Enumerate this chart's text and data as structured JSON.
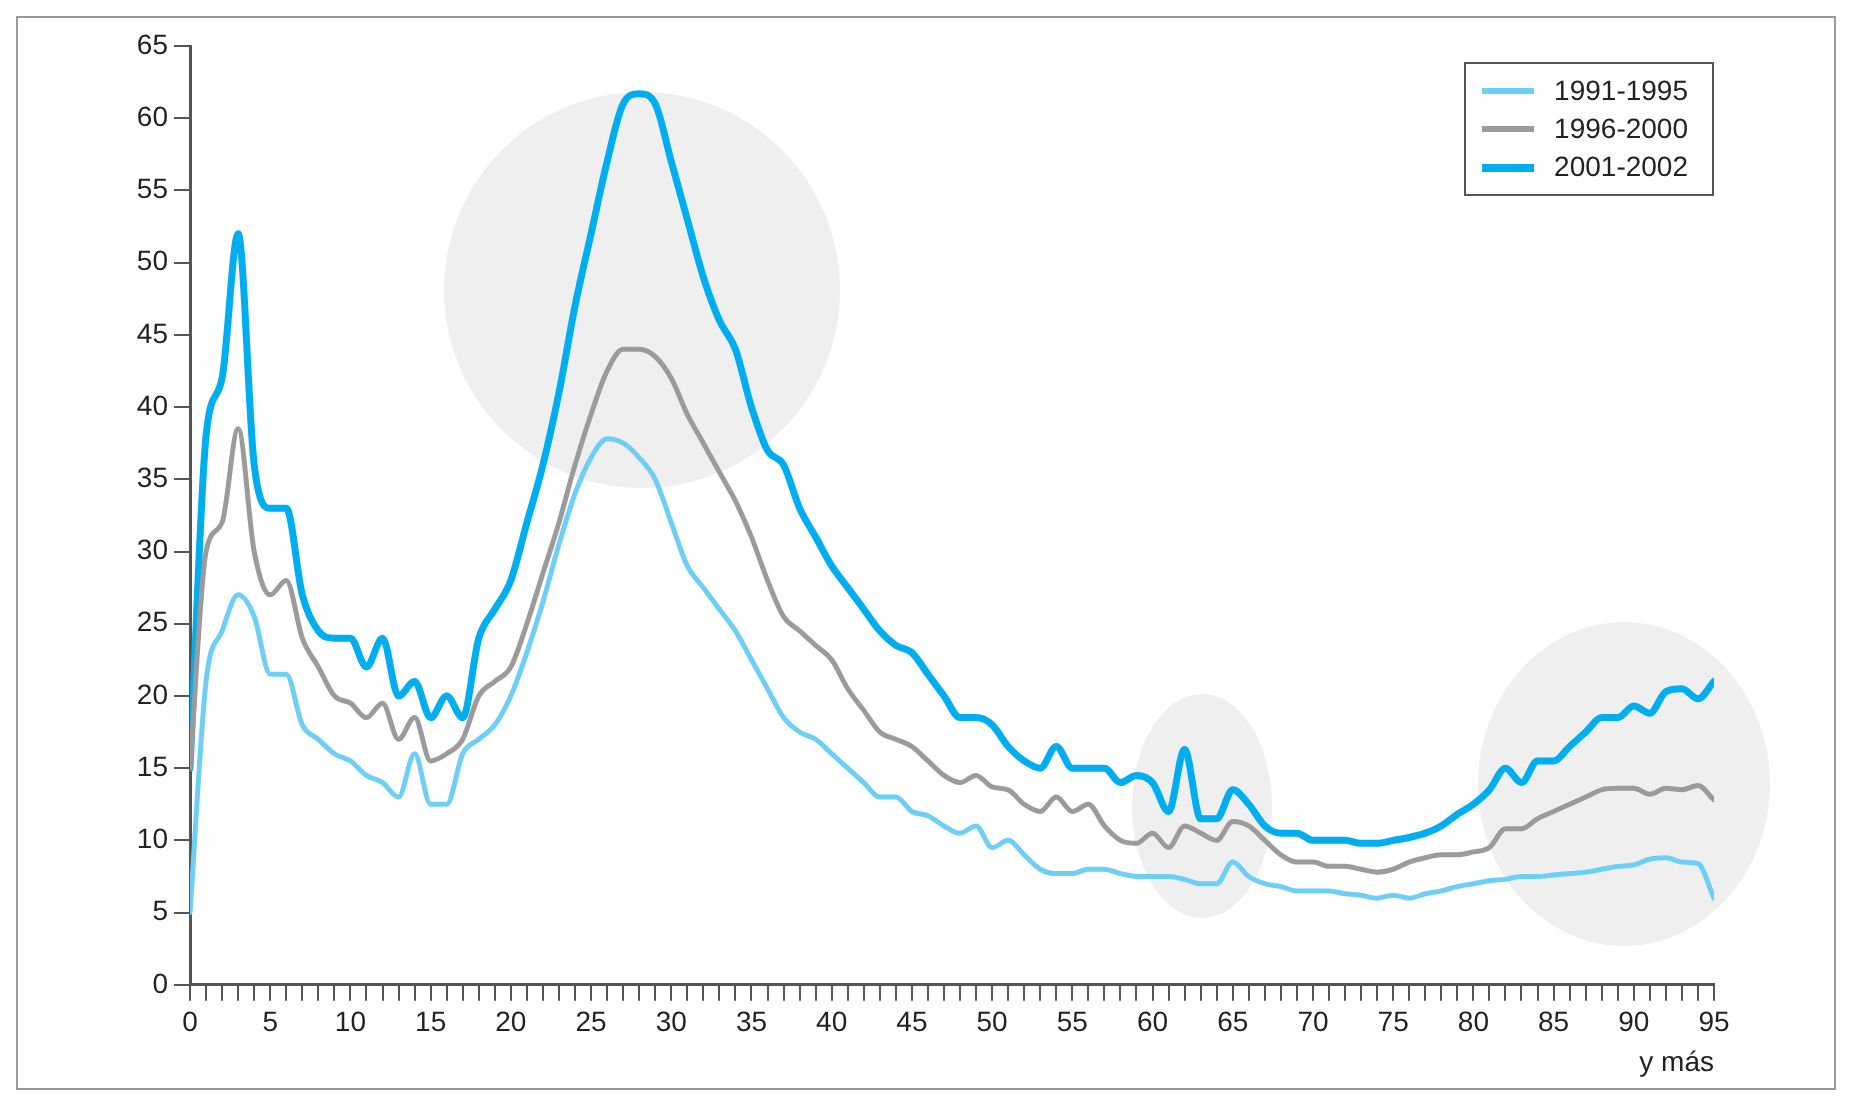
{
  "chart_data": {
    "type": "line",
    "xlabel": "y más",
    "x": [
      0,
      1,
      2,
      3,
      4,
      5,
      6,
      7,
      8,
      9,
      10,
      11,
      12,
      13,
      14,
      15,
      16,
      17,
      18,
      19,
      20,
      21,
      22,
      23,
      24,
      25,
      26,
      27,
      28,
      29,
      30,
      31,
      32,
      33,
      34,
      35,
      36,
      37,
      38,
      39,
      40,
      41,
      42,
      43,
      44,
      45,
      46,
      47,
      48,
      49,
      50,
      51,
      52,
      53,
      54,
      55,
      56,
      57,
      58,
      59,
      60,
      61,
      62,
      63,
      64,
      65,
      66,
      67,
      68,
      69,
      70,
      71,
      72,
      73,
      74,
      75,
      76,
      77,
      78,
      79,
      80,
      81,
      82,
      83,
      84,
      85,
      86,
      87,
      88,
      89,
      90,
      91,
      92,
      93,
      94,
      95
    ],
    "series": [
      {
        "name": "1991-1995",
        "color": "#6dcff6",
        "values": [
          5,
          21,
          24.5,
          27,
          25.5,
          21.5,
          21.5,
          18,
          17,
          16,
          15.5,
          14.5,
          14,
          13,
          16,
          12.5,
          12.5,
          16,
          17,
          18,
          20,
          23,
          26.5,
          30.5,
          34,
          36.5,
          37.8,
          37.5,
          36.5,
          35,
          32,
          29,
          27.5,
          26,
          24.5,
          22.5,
          20.5,
          18.5,
          17.5,
          17,
          16,
          15,
          14,
          13,
          13,
          12,
          11.7,
          11,
          10.5,
          11,
          9.5,
          10,
          9,
          8,
          7.7,
          7.7,
          8,
          8,
          7.7,
          7.5,
          7.5,
          7.5,
          7.3,
          7,
          7,
          8.5,
          7.5,
          7,
          6.8,
          6.5,
          6.5,
          6.5,
          6.3,
          6.2,
          6,
          6.2,
          6,
          6.3,
          6.5,
          6.8,
          7,
          7.2,
          7.3,
          7.5,
          7.5,
          7.6,
          7.7,
          7.8,
          8,
          8.2,
          8.3,
          8.7,
          8.8,
          8.5,
          8.4,
          6
        ]
      },
      {
        "name": "1996-2000",
        "color": "#9b9b9b",
        "values": [
          15,
          30,
          32,
          38.5,
          30,
          27,
          28,
          24,
          22,
          20,
          19.5,
          18.5,
          19.5,
          17,
          18.5,
          15.5,
          16,
          17,
          20,
          21,
          22,
          25,
          28.5,
          32,
          36,
          39.5,
          42.5,
          44,
          44,
          43.5,
          42,
          39.5,
          37.5,
          35.5,
          33.5,
          31,
          28,
          25.5,
          24.5,
          23.5,
          22.5,
          20.5,
          19,
          17.5,
          17,
          16.5,
          15.5,
          14.5,
          14,
          14.5,
          13.7,
          13.5,
          12.5,
          12,
          13,
          12,
          12.5,
          11,
          10,
          9.8,
          10.5,
          9.5,
          11,
          10.5,
          10,
          11.3,
          11,
          10,
          9,
          8.5,
          8.5,
          8.2,
          8.2,
          8,
          7.8,
          8,
          8.5,
          8.8,
          9,
          9,
          9.2,
          9.5,
          10.8,
          10.8,
          11.5,
          12,
          12.5,
          13,
          13.5,
          13.6,
          13.6,
          13.2,
          13.6,
          13.5,
          13.8,
          12.8
        ]
      },
      {
        "name": "2001-2002",
        "color": "#00aeef",
        "values": [
          15,
          38,
          42,
          52,
          36,
          33,
          33,
          27,
          24.5,
          24,
          24,
          22,
          24,
          20,
          21,
          18.5,
          20,
          18.5,
          24,
          26,
          28,
          32,
          36,
          41,
          47,
          52,
          57,
          61,
          61.7,
          61,
          57,
          53,
          49,
          46,
          44,
          40,
          37,
          36,
          33,
          31,
          29,
          27.5,
          26,
          24.5,
          23.5,
          23,
          21.5,
          20,
          18.5,
          18.5,
          18,
          16.5,
          15.5,
          15,
          16.5,
          15,
          15,
          15,
          14,
          14.5,
          14,
          12,
          16.3,
          11.5,
          11.5,
          13.5,
          12.5,
          11,
          10.5,
          10.5,
          10,
          10,
          10,
          9.8,
          9.8,
          10,
          10.2,
          10.5,
          11,
          11.8,
          12.5,
          13.5,
          15,
          14,
          15.5,
          15.5,
          16.5,
          17.5,
          18.5,
          18.5,
          19.3,
          18.8,
          20.3,
          20.5,
          19.8,
          21
        ]
      }
    ],
    "xlim": [
      0,
      95
    ],
    "xticks": [
      0,
      {
        "value": 1,
        "label": null
      },
      {
        "value": 2,
        "label": null
      },
      {
        "value": 3,
        "label": null
      },
      {
        "value": 4,
        "label": null
      },
      5,
      {
        "value": 6,
        "label": null
      },
      {
        "value": 7,
        "label": null
      },
      {
        "value": 8,
        "label": null
      },
      {
        "value": 9,
        "label": null
      },
      10,
      {
        "value": 11,
        "label": null
      },
      {
        "value": 12,
        "label": null
      },
      {
        "value": 13,
        "label": null
      },
      {
        "value": 14,
        "label": null
      },
      15,
      {
        "value": 16,
        "label": null
      },
      {
        "value": 17,
        "label": null
      },
      {
        "value": 18,
        "label": null
      },
      {
        "value": 19,
        "label": null
      },
      20,
      {
        "value": 21,
        "label": null
      },
      {
        "value": 22,
        "label": null
      },
      {
        "value": 23,
        "label": null
      },
      {
        "value": 24,
        "label": null
      },
      25,
      {
        "value": 26,
        "label": null
      },
      {
        "value": 27,
        "label": null
      },
      {
        "value": 28,
        "label": null
      },
      {
        "value": 29,
        "label": null
      },
      30,
      {
        "value": 31,
        "label": null
      },
      {
        "value": 32,
        "label": null
      },
      {
        "value": 33,
        "label": null
      },
      {
        "value": 34,
        "label": null
      },
      35,
      {
        "value": 36,
        "label": null
      },
      {
        "value": 37,
        "label": null
      },
      {
        "value": 38,
        "label": null
      },
      {
        "value": 39,
        "label": null
      },
      40,
      {
        "value": 41,
        "label": null
      },
      {
        "value": 42,
        "label": null
      },
      {
        "value": 43,
        "label": null
      },
      {
        "value": 44,
        "label": null
      },
      45,
      {
        "value": 46,
        "label": null
      },
      {
        "value": 47,
        "label": null
      },
      {
        "value": 48,
        "label": null
      },
      {
        "value": 49,
        "label": null
      },
      50,
      {
        "value": 51,
        "label": null
      },
      {
        "value": 52,
        "label": null
      },
      {
        "value": 53,
        "label": null
      },
      {
        "value": 54,
        "label": null
      },
      55,
      {
        "value": 56,
        "label": null
      },
      {
        "value": 57,
        "label": null
      },
      {
        "value": 58,
        "label": null
      },
      {
        "value": 59,
        "label": null
      },
      60,
      {
        "value": 61,
        "label": null
      },
      {
        "value": 62,
        "label": null
      },
      {
        "value": 63,
        "label": null
      },
      {
        "value": 64,
        "label": null
      },
      65,
      {
        "value": 66,
        "label": null
      },
      {
        "value": 67,
        "label": null
      },
      {
        "value": 68,
        "label": null
      },
      {
        "value": 69,
        "label": null
      },
      70,
      {
        "value": 71,
        "label": null
      },
      {
        "value": 72,
        "label": null
      },
      {
        "value": 73,
        "label": null
      },
      {
        "value": 74,
        "label": null
      },
      75,
      {
        "value": 76,
        "label": null
      },
      {
        "value": 77,
        "label": null
      },
      {
        "value": 78,
        "label": null
      },
      {
        "value": 79,
        "label": null
      },
      80,
      {
        "value": 81,
        "label": null
      },
      {
        "value": 82,
        "label": null
      },
      {
        "value": 83,
        "label": null
      },
      {
        "value": 84,
        "label": null
      },
      85,
      {
        "value": 86,
        "label": null
      },
      {
        "value": 87,
        "label": null
      },
      {
        "value": 88,
        "label": null
      },
      {
        "value": 89,
        "label": null
      },
      90,
      {
        "value": 91,
        "label": null
      },
      {
        "value": 92,
        "label": null
      },
      {
        "value": 93,
        "label": null
      },
      {
        "value": 94,
        "label": null
      },
      95
    ],
    "ylim": [
      0,
      65
    ],
    "yticks": [
      0,
      5,
      10,
      15,
      20,
      25,
      30,
      35,
      40,
      45,
      50,
      55,
      60,
      65
    ],
    "grid": false,
    "legend": "top right",
    "marker": "none",
    "line_style": "solid"
  }
}
